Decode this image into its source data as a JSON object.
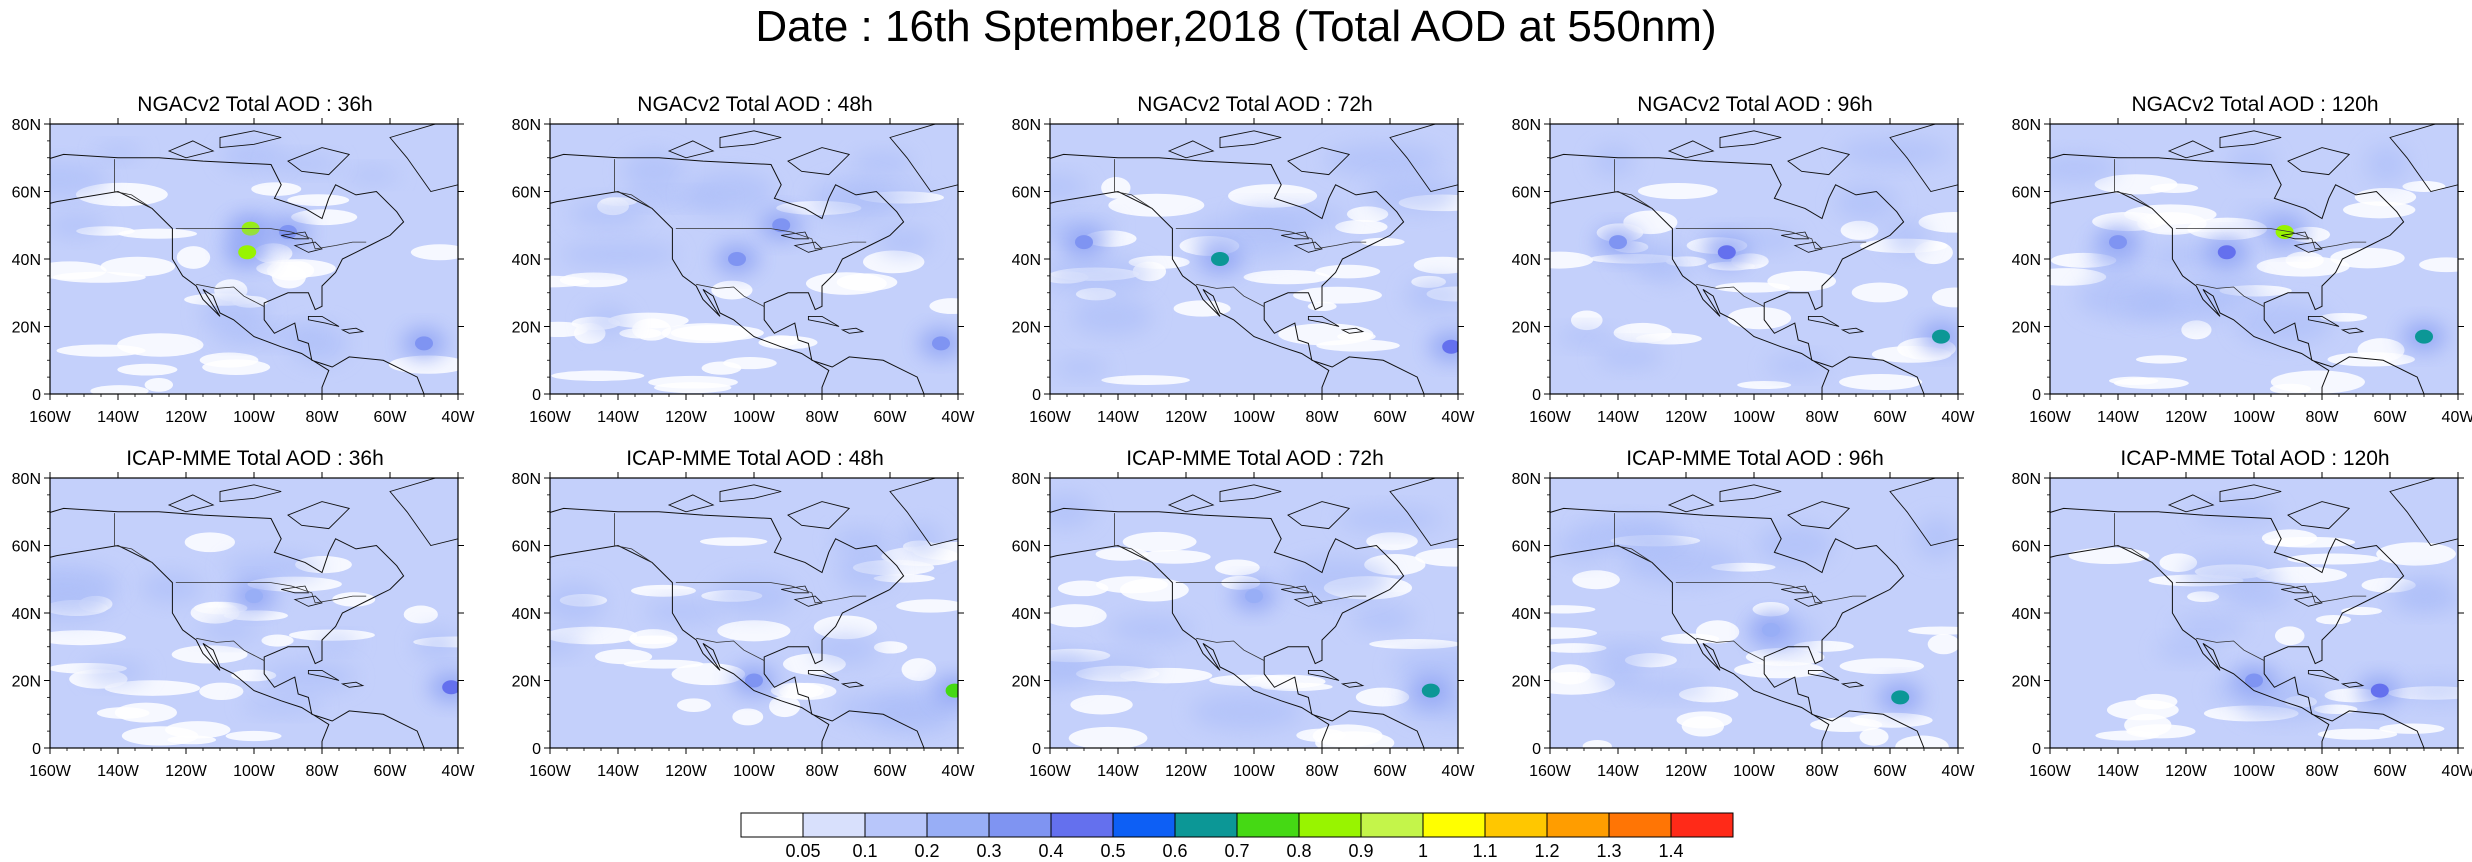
{
  "title": "Date : 16th Sptember,2018 (Total AOD at 550nm)",
  "axes": {
    "lat_labels": [
      "80N",
      "60N",
      "40N",
      "20N",
      "0"
    ],
    "lon_labels": [
      "160W",
      "140W",
      "120W",
      "100W",
      "80W",
      "60W",
      "40W"
    ],
    "lon_range": [
      -160,
      -40
    ],
    "lat_range": [
      0,
      80
    ]
  },
  "panels": [
    {
      "title": "NGACv2 Total AOD : 36h",
      "hotspots": [
        {
          "lon": -101,
          "lat": 49,
          "aod": 0.8
        },
        {
          "lon": -102,
          "lat": 42,
          "aod": 0.8
        },
        {
          "lon": -90,
          "lat": 48,
          "aod": 0.35
        },
        {
          "lon": -50,
          "lat": 15,
          "aod": 0.35
        }
      ]
    },
    {
      "title": "NGACv2 Total AOD : 48h",
      "hotspots": [
        {
          "lon": -105,
          "lat": 40,
          "aod": 0.35
        },
        {
          "lon": -92,
          "lat": 50,
          "aod": 0.35
        },
        {
          "lon": -45,
          "lat": 15,
          "aod": 0.3
        }
      ]
    },
    {
      "title": "NGACv2 Total AOD : 72h",
      "hotspots": [
        {
          "lon": -110,
          "lat": 40,
          "aod": 0.65
        },
        {
          "lon": -42,
          "lat": 14,
          "aod": 0.45
        },
        {
          "lon": -150,
          "lat": 45,
          "aod": 0.3
        }
      ]
    },
    {
      "title": "NGACv2 Total AOD : 96h",
      "hotspots": [
        {
          "lon": -108,
          "lat": 42,
          "aod": 0.45
        },
        {
          "lon": -45,
          "lat": 17,
          "aod": 0.65
        },
        {
          "lon": -140,
          "lat": 45,
          "aod": 0.3
        }
      ]
    },
    {
      "title": "NGACv2 Total AOD : 120h",
      "hotspots": [
        {
          "lon": -91,
          "lat": 48,
          "aod": 0.8
        },
        {
          "lon": -108,
          "lat": 42,
          "aod": 0.45
        },
        {
          "lon": -50,
          "lat": 17,
          "aod": 0.65
        },
        {
          "lon": -140,
          "lat": 45,
          "aod": 0.3
        }
      ]
    },
    {
      "title": "ICAP-MME Total AOD : 36h",
      "hotspots": [
        {
          "lon": -42,
          "lat": 18,
          "aod": 0.45
        },
        {
          "lon": -100,
          "lat": 45,
          "aod": 0.25
        }
      ]
    },
    {
      "title": "ICAP-MME Total AOD : 48h",
      "hotspots": [
        {
          "lon": -41,
          "lat": 17,
          "aod": 0.75
        },
        {
          "lon": -100,
          "lat": 20,
          "aod": 0.3
        }
      ]
    },
    {
      "title": "ICAP-MME Total AOD : 72h",
      "hotspots": [
        {
          "lon": -48,
          "lat": 17,
          "aod": 0.65
        },
        {
          "lon": -100,
          "lat": 45,
          "aod": 0.25
        }
      ]
    },
    {
      "title": "ICAP-MME Total AOD : 96h",
      "hotspots": [
        {
          "lon": -57,
          "lat": 15,
          "aod": 0.6
        },
        {
          "lon": -95,
          "lat": 35,
          "aod": 0.25
        }
      ]
    },
    {
      "title": "ICAP-MME Total AOD : 120h",
      "hotspots": [
        {
          "lon": -63,
          "lat": 17,
          "aod": 0.45
        },
        {
          "lon": -100,
          "lat": 20,
          "aod": 0.3
        }
      ]
    }
  ],
  "colorbar": {
    "colors": [
      "#ffffff",
      "#d8e0fc",
      "#b8c6fa",
      "#98aef6",
      "#7f94f2",
      "#6470ee",
      "#0d5ff5",
      "#0c9796",
      "#45d914",
      "#98f400",
      "#c4f54a",
      "#ffff00",
      "#ffc700",
      "#ff9d00",
      "#ff7505",
      "#ff2a18"
    ],
    "labels": [
      "0.05",
      "0.1",
      "0.2",
      "0.3",
      "0.4",
      "0.5",
      "0.6",
      "0.7",
      "0.8",
      "0.9",
      "1",
      "1.1",
      "1.2",
      "1.3",
      "1.4"
    ]
  }
}
